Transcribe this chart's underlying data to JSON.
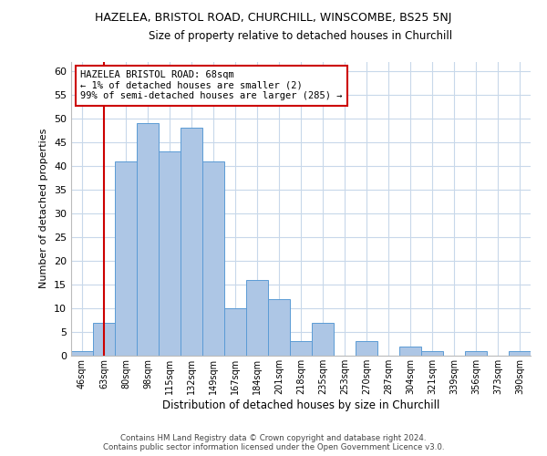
{
  "title": "HAZELEA, BRISTOL ROAD, CHURCHILL, WINSCOMBE, BS25 5NJ",
  "subtitle": "Size of property relative to detached houses in Churchill",
  "xlabel": "Distribution of detached houses by size in Churchill",
  "ylabel": "Number of detached properties",
  "bin_labels": [
    "46sqm",
    "63sqm",
    "80sqm",
    "98sqm",
    "115sqm",
    "132sqm",
    "149sqm",
    "167sqm",
    "184sqm",
    "201sqm",
    "218sqm",
    "235sqm",
    "253sqm",
    "270sqm",
    "287sqm",
    "304sqm",
    "321sqm",
    "339sqm",
    "356sqm",
    "373sqm",
    "390sqm"
  ],
  "bar_heights": [
    1,
    7,
    41,
    49,
    43,
    48,
    41,
    10,
    16,
    12,
    3,
    7,
    0,
    3,
    0,
    2,
    1,
    0,
    1,
    0,
    1
  ],
  "bar_color": "#adc6e5",
  "bar_edge_color": "#5b9bd5",
  "grid_color": "#c8d8ea",
  "vline_x_index": 1,
  "vline_color": "#cc0000",
  "annotation_text": "HAZELEA BRISTOL ROAD: 68sqm\n← 1% of detached houses are smaller (2)\n99% of semi-detached houses are larger (285) →",
  "annotation_box_color": "#ffffff",
  "annotation_box_edge": "#cc0000",
  "ylim": [
    0,
    62
  ],
  "yticks": [
    0,
    5,
    10,
    15,
    20,
    25,
    30,
    35,
    40,
    45,
    50,
    55,
    60
  ],
  "footer_line1": "Contains HM Land Registry data © Crown copyright and database right 2024.",
  "footer_line2": "Contains public sector information licensed under the Open Government Licence v3.0.",
  "background_color": "#ffffff"
}
